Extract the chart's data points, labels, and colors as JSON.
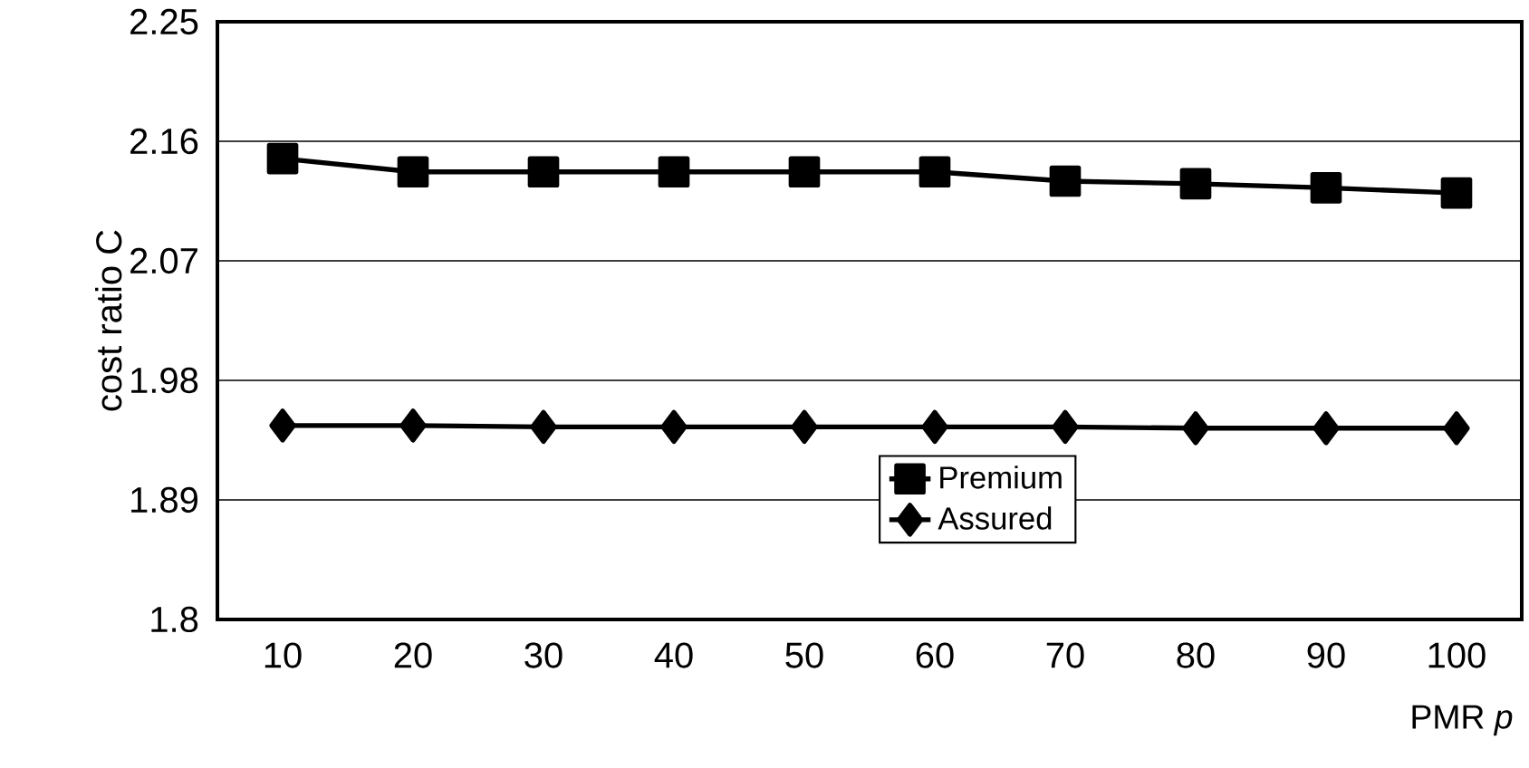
{
  "chart_data": {
    "type": "line",
    "xlabel": "PMR *p*",
    "ylabel": "cost ratio C",
    "categories": [
      "10",
      "20",
      "30",
      "40",
      "50",
      "60",
      "70",
      "80",
      "90",
      "100"
    ],
    "series": [
      {
        "name": "Premium",
        "color": "#000000",
        "marker": "square",
        "values": [
          2.147,
          2.137,
          2.137,
          2.137,
          2.137,
          2.137,
          2.13,
          2.128,
          2.125,
          2.121
        ]
      },
      {
        "name": "Assured",
        "color": "#000000",
        "marker": "diamond",
        "values": [
          1.946,
          1.946,
          1.945,
          1.945,
          1.945,
          1.945,
          1.945,
          1.944,
          1.944,
          1.944
        ]
      }
    ],
    "ylim": [
      1.8,
      2.25
    ],
    "yticks": [
      1.8,
      1.89,
      1.98,
      2.07,
      2.16,
      2.25
    ],
    "grid": "y",
    "legend": "bottom",
    "line_style": "solid"
  }
}
